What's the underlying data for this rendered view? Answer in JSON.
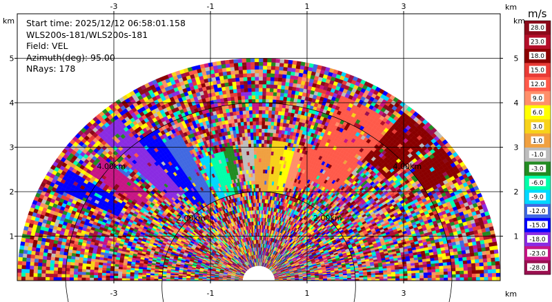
{
  "chart_data": {
    "type": "heatmap",
    "subtype": "radar-rhi",
    "info": {
      "start_time": "Start time: 2025/12/12 06:58:01.158",
      "instrument": "WLS200s-181/WLS200s-181",
      "field": "Field: VEL",
      "azimuth": "Azimuth(deg): 95.00",
      "nrays": "NRays: 178"
    },
    "x_unit": "km",
    "y_unit": "km",
    "x_range": [
      -5.0,
      5.0
    ],
    "y_range": [
      0.0,
      6.0
    ],
    "x_ticks": [
      "-3",
      "-1",
      "1",
      "3"
    ],
    "x_tick_values": [
      -3,
      -1,
      1,
      3
    ],
    "y_ticks": [
      "1",
      "2",
      "3",
      "4",
      "5"
    ],
    "y_tick_values": [
      1,
      2,
      3,
      4,
      5
    ],
    "range_rings_km": [
      2,
      4
    ],
    "ring_labels": [
      "2.00km",
      "2.00km",
      "4.00km",
      "4.00km"
    ],
    "max_range_km": 5.0,
    "colorbar": {
      "unit": "m/s",
      "labels": [
        "28.0",
        "23.0",
        "18.0",
        "15.0",
        "12.0",
        "9.0",
        "6.0",
        "3.0",
        "1.0",
        "-1.0",
        "-3.0",
        "-6.0",
        "-9.0",
        "-12.0",
        "-15.0",
        "-18.0",
        "-23.0",
        "-28.0"
      ],
      "colors": [
        "#8b0a1a",
        "#b30f2a",
        "#8a0000",
        "#e83b36",
        "#ff5a4a",
        "#ff8f6a",
        "#ffff00",
        "#f7d21a",
        "#f0a040",
        "#bdbdbd",
        "#228b22",
        "#00ffaa",
        "#00d8ff",
        "#4169e1",
        "#0000ff",
        "#8a2be2",
        "#c71585",
        "#9b1050"
      ]
    }
  }
}
